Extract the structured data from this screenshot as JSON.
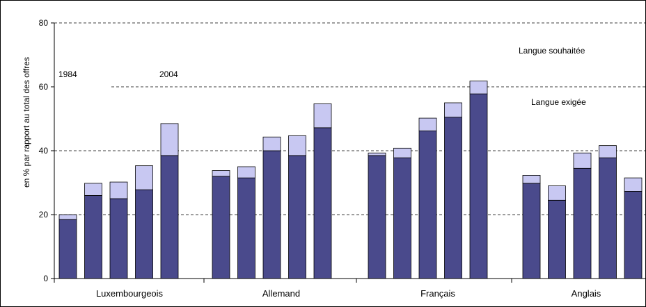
{
  "chart_data": {
    "type": "bar",
    "stacked": true,
    "ylabel": "en % par rapport au total des offres",
    "ylim": [
      0,
      80
    ],
    "yticks": [
      0,
      20,
      40,
      60,
      80
    ],
    "grid": "horizontal-dashed",
    "groups": [
      "Luxembourgeois",
      "Allemand",
      "Français",
      "Anglais"
    ],
    "series": [
      {
        "name": "Langue exigée",
        "color": "#4a4a8c",
        "values": [
          [
            18.5,
            26,
            25,
            27.8,
            38.5
          ],
          [
            32,
            31.5,
            40,
            38.5,
            47.2
          ],
          [
            38.5,
            37.8,
            46.2,
            50.5,
            57.8
          ],
          [
            29.8,
            24.5,
            34.5,
            37.8,
            27.3
          ]
        ]
      },
      {
        "name": "Langue souhaitée",
        "color": "#c8c8f2",
        "values": [
          [
            1.5,
            3.8,
            5.2,
            7.5,
            10
          ],
          [
            1.8,
            3.5,
            4.3,
            6.2,
            7.5
          ],
          [
            0.8,
            3,
            4,
            4.5,
            4
          ],
          [
            2.5,
            4.5,
            4.8,
            3.8,
            4.2
          ]
        ]
      }
    ],
    "annotations": {
      "start_year": "1984",
      "end_year": "2004"
    }
  }
}
